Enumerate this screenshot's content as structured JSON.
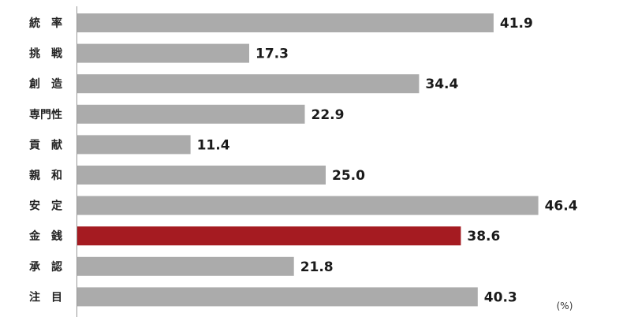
{
  "chart_data": {
    "type": "bar",
    "orientation": "horizontal",
    "categories": [
      "統　率",
      "挑　戦",
      "創　造",
      "専門性",
      "貢　献",
      "親　和",
      "安　定",
      "金　銭",
      "承　認",
      "注　目"
    ],
    "values": [
      41.9,
      17.3,
      34.4,
      22.9,
      11.4,
      25.0,
      46.4,
      38.6,
      21.8,
      40.3
    ],
    "value_labels": [
      "41.9",
      "17.3",
      "34.4",
      "22.9",
      "11.4",
      "25.0",
      "46.4",
      "38.6",
      "21.8",
      "40.3"
    ],
    "unit": "(%)",
    "highlight_index": 7,
    "xlim": [
      0,
      50
    ],
    "grid": false,
    "legend": "none",
    "colors": {
      "bar": "#ababab",
      "highlight": "#a51b21",
      "axis": "#999999",
      "text": "#222222"
    }
  }
}
